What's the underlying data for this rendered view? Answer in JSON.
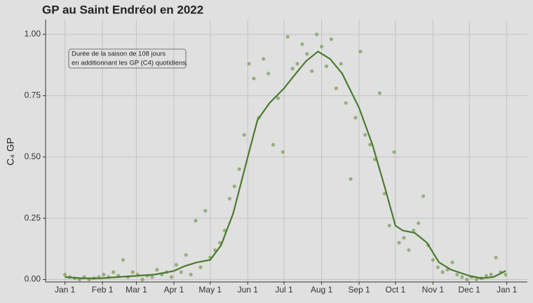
{
  "chart_data": {
    "type": "scatter",
    "title": "GP au Saint Endréol en 2022",
    "y_label": "C₄ GP",
    "annotation": [
      "Durée de la saison de 108 jours",
      "en additionnant les GP (C4) quotidiens."
    ],
    "point_color": "#7f9d5c",
    "line_color": "#4b7a2f",
    "grid": true,
    "xlim": [
      -15,
      383
    ],
    "ylim": [
      -0.01,
      1.06
    ],
    "xticks": [
      {
        "value": 1,
        "label": "Jan 1"
      },
      {
        "value": 32,
        "label": "Feb 1"
      },
      {
        "value": 60,
        "label": "Mar 1"
      },
      {
        "value": 91,
        "label": "Apr 1"
      },
      {
        "value": 121,
        "label": "May 1"
      },
      {
        "value": 152,
        "label": "Jun 1"
      },
      {
        "value": 182,
        "label": "Jul 1"
      },
      {
        "value": 213,
        "label": "Aug 1"
      },
      {
        "value": 244,
        "label": "Sep 1"
      },
      {
        "value": 274,
        "label": "Oct 1"
      },
      {
        "value": 305,
        "label": "Nov 1"
      },
      {
        "value": 335,
        "label": "Dec 1"
      },
      {
        "value": 366,
        "label": "Jan 1"
      }
    ],
    "yticks": [
      {
        "value": 0,
        "label": "0.00"
      },
      {
        "value": 0.25,
        "label": "0.25"
      },
      {
        "value": 0.5,
        "label": "0.50"
      },
      {
        "value": 0.75,
        "label": "0.75"
      },
      {
        "value": 1,
        "label": "1.00"
      }
    ],
    "points": {
      "x": [
        1,
        5,
        9,
        13,
        17,
        21,
        25,
        29,
        33,
        37,
        41,
        45,
        49,
        53,
        57,
        61,
        65,
        69,
        73,
        77,
        81,
        85,
        89,
        93,
        97,
        101,
        105,
        109,
        113,
        117,
        121,
        125,
        129,
        133,
        137,
        141,
        145,
        149,
        153,
        157,
        161,
        165,
        169,
        173,
        177,
        181,
        185,
        189,
        193,
        197,
        201,
        205,
        209,
        213,
        217,
        221,
        225,
        229,
        233,
        237,
        241,
        245,
        249,
        253,
        257,
        261,
        265,
        269,
        273,
        277,
        281,
        285,
        289,
        293,
        297,
        301,
        305,
        309,
        313,
        317,
        321,
        325,
        329,
        333,
        337,
        341,
        345,
        349,
        353,
        357,
        361,
        365
      ],
      "values": [
        0.02,
        0.01,
        0.005,
        0.0,
        0.01,
        0.0,
        0.005,
        0.01,
        0.02,
        0.01,
        0.03,
        0.015,
        0.08,
        0.01,
        0.03,
        0.02,
        0.0,
        0.015,
        0.01,
        0.04,
        0.02,
        0.03,
        0.01,
        0.06,
        0.03,
        0.1,
        0.02,
        0.24,
        0.05,
        0.28,
        0.09,
        0.12,
        0.15,
        0.2,
        0.33,
        0.38,
        0.45,
        0.59,
        0.88,
        0.82,
        0.66,
        0.9,
        0.84,
        0.55,
        0.74,
        0.52,
        0.99,
        0.86,
        0.88,
        0.96,
        0.92,
        0.85,
        1.0,
        0.95,
        0.87,
        0.98,
        0.78,
        0.88,
        0.72,
        0.41,
        0.66,
        0.93,
        0.59,
        0.55,
        0.49,
        0.76,
        0.35,
        0.22,
        0.52,
        0.15,
        0.17,
        0.12,
        0.2,
        0.23,
        0.34,
        0.14,
        0.08,
        0.05,
        0.03,
        0.04,
        0.07,
        0.02,
        0.01,
        0.0,
        0.01,
        0.0,
        0.005,
        0.015,
        0.02,
        0.09,
        0.03,
        0.02
      ]
    },
    "smooth": {
      "x": [
        1,
        15,
        30,
        45,
        60,
        75,
        91,
        100,
        110,
        121,
        130,
        140,
        152,
        160,
        170,
        182,
        190,
        200,
        210,
        220,
        230,
        244,
        255,
        265,
        274,
        280,
        290,
        300,
        310,
        320,
        335,
        345,
        355,
        365
      ],
      "values": [
        0.01,
        0.005,
        0.005,
        0.01,
        0.015,
        0.02,
        0.035,
        0.055,
        0.07,
        0.08,
        0.14,
        0.27,
        0.5,
        0.65,
        0.72,
        0.78,
        0.83,
        0.89,
        0.93,
        0.9,
        0.84,
        0.7,
        0.55,
        0.38,
        0.22,
        0.2,
        0.19,
        0.15,
        0.07,
        0.04,
        0.015,
        0.005,
        0.01,
        0.035
      ]
    }
  }
}
